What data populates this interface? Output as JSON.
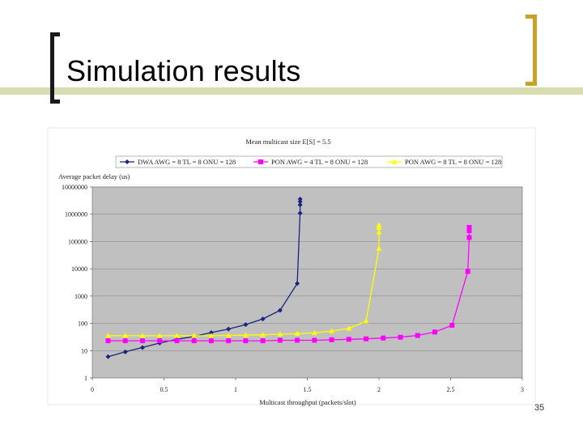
{
  "slide": {
    "title": "Simulation results",
    "page_number": "35"
  },
  "colors": {
    "title_band": "#d8dcb0",
    "bracket_left": "#1a1a1a",
    "bracket_right": "#c9a227",
    "plot_bg": "#c0c0c0",
    "gridline": "#8c8c8c"
  },
  "chart_data": {
    "type": "line",
    "title": "Mean multicast size E[S] = 5.5",
    "xlabel": "Multicast throughput (packets/slot)",
    "ylabel": "Average packet delay (us)",
    "xlim": [
      0,
      3
    ],
    "ylim": [
      1,
      10000000
    ],
    "y_scale": "log",
    "x_ticks": [
      "0",
      "0.5",
      "1",
      "1.5",
      "2",
      "2.5",
      "3"
    ],
    "y_ticks": [
      "1",
      "10",
      "100",
      "1000",
      "10000",
      "100000",
      "1000000",
      "10000000"
    ],
    "grid": "horizontal",
    "legend_position": "top",
    "series": [
      {
        "name": "DWA AWG = 8 TL = 8 ONU = 128",
        "color": "#1a237e",
        "marker": "diamond",
        "x": [
          0.11,
          0.23,
          0.35,
          0.47,
          0.59,
          0.71,
          0.83,
          0.95,
          1.07,
          1.19,
          1.31,
          1.43,
          1.45,
          1.45,
          1.45,
          1.45
        ],
        "y": [
          6,
          9,
          13,
          19,
          26,
          33,
          46,
          62,
          90,
          145,
          300,
          2900,
          1100000,
          2200000,
          2900000,
          3600000
        ]
      },
      {
        "name": "PON AWG = 4 TL = 8 ONU = 128",
        "color": "#ff00ff",
        "marker": "square",
        "x": [
          0.11,
          0.23,
          0.35,
          0.47,
          0.59,
          0.71,
          0.83,
          0.95,
          1.07,
          1.19,
          1.31,
          1.43,
          1.55,
          1.67,
          1.79,
          1.91,
          2.03,
          2.15,
          2.27,
          2.39,
          2.51,
          2.62,
          2.63,
          2.63,
          2.63
        ],
        "y": [
          23,
          23,
          23,
          23,
          23,
          23,
          23,
          23,
          23,
          23,
          24,
          24,
          24,
          25,
          26,
          27,
          29,
          31,
          36,
          48,
          85,
          8000,
          140000,
          250000,
          330000
        ]
      },
      {
        "name": "PON AWG = 8 TL = 8 ONU = 128",
        "color": "#ffff00",
        "marker": "triangle",
        "x": [
          0.11,
          0.23,
          0.35,
          0.47,
          0.59,
          0.71,
          0.83,
          0.95,
          1.07,
          1.19,
          1.31,
          1.43,
          1.55,
          1.67,
          1.79,
          1.91,
          2.0,
          2.0,
          2.0,
          2.0
        ],
        "y": [
          35,
          35,
          35,
          35,
          35,
          35,
          35,
          36,
          37,
          38,
          40,
          42,
          45,
          52,
          65,
          120,
          55000,
          220000,
          320000,
          400000
        ]
      }
    ]
  }
}
